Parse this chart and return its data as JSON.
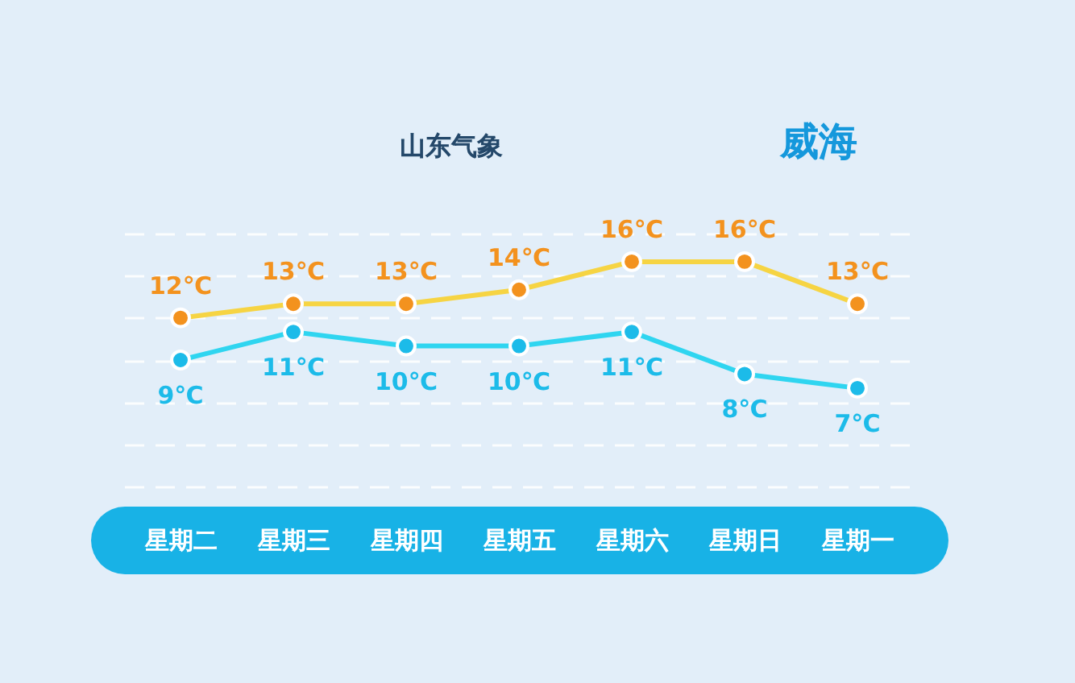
{
  "chart_data": {
    "type": "line",
    "title": "威海",
    "annotations": [
      "山东气象"
    ],
    "categories": [
      "星期二",
      "星期三",
      "星期四",
      "星期五",
      "星期六",
      "星期日",
      "星期一"
    ],
    "series": [
      {
        "color": "#f6d443",
        "colors": [
          "#f3921e",
          "#f3921e",
          "#f3921e",
          "#f3921e",
          "#f3921e",
          "#f3921e",
          "#f3921e"
        ],
        "values": [
          12,
          13,
          13,
          14,
          16,
          16,
          13
        ],
        "value_labels": [
          "12℃",
          "13℃",
          "13℃",
          "14℃",
          "16℃",
          "16℃",
          "13℃"
        ]
      },
      {
        "color": "#2fd5f0",
        "colors": [
          "#1cbbe9",
          "#1cbbe9",
          "#1cbbe9",
          "#1cbbe9",
          "#1cbbe9",
          "#1cbbe9",
          "#1cbbe9"
        ],
        "values": [
          9,
          11,
          10,
          10,
          11,
          8,
          7
        ],
        "value_labels": [
          "9℃",
          "11℃",
          "10℃",
          "10℃",
          "11℃",
          "8℃",
          "7℃"
        ]
      }
    ],
    "ylim": [
      0,
      18
    ],
    "yticks": [
      {
        "value": 0,
        "label": null
      },
      {
        "value": 3,
        "label": null
      },
      {
        "value": 6,
        "label": null
      },
      {
        "value": 9,
        "label": null
      },
      {
        "value": 12,
        "label": null
      },
      {
        "value": 15,
        "label": null
      },
      {
        "value": 18,
        "label": null
      }
    ],
    "grid": "y",
    "tick_labels": "x",
    "marker": "circle",
    "line_style": "solid"
  }
}
